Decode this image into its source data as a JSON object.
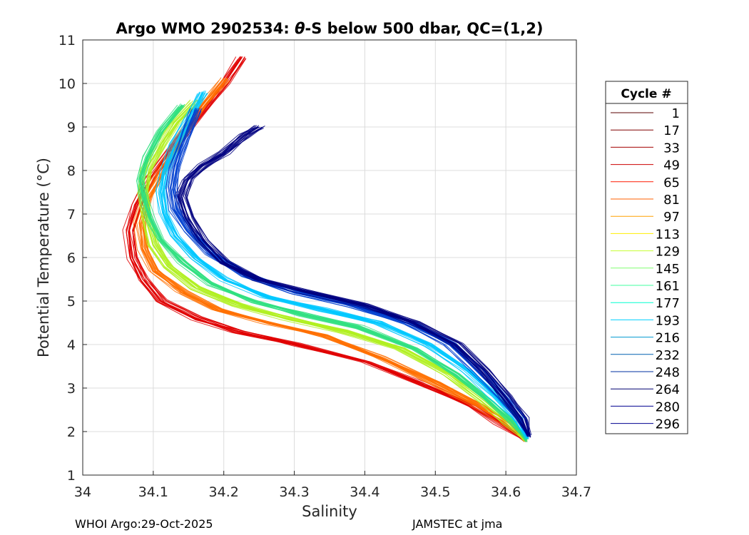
{
  "chart_data": {
    "type": "line",
    "title": "Argo WMO 2902534: θ-S below 500 dbar,  QC=(1,2)",
    "title_parts": {
      "prefix": "Argo WMO 2902534: ",
      "symbol": "θ",
      "suffix": "-S below 500 dbar,  QC=(1,2)"
    },
    "xlabel": "Salinity",
    "ylabel": "Potential Temperature (°C)",
    "xlim": [
      34,
      34.7
    ],
    "ylim": [
      1,
      11
    ],
    "xticks": [
      34,
      34.1,
      34.2,
      34.3,
      34.4,
      34.5,
      34.6,
      34.7
    ],
    "xtick_labels": [
      "34",
      "34.1",
      "34.2",
      "34.3",
      "34.4",
      "34.5",
      "34.6",
      "34.7"
    ],
    "yticks": [
      1,
      2,
      3,
      4,
      5,
      6,
      7,
      8,
      9,
      10,
      11
    ],
    "ytick_labels": [
      "1",
      "2",
      "3",
      "4",
      "5",
      "6",
      "7",
      "8",
      "9",
      "10",
      "11"
    ],
    "grid": true,
    "legend": {
      "title": "Cycle #",
      "placement": "right, outside",
      "entries": [
        {
          "label": "1",
          "color": "#5a0000"
        },
        {
          "label": "17",
          "color": "#800000"
        },
        {
          "label": "33",
          "color": "#a30000"
        },
        {
          "label": "49",
          "color": "#cc0000"
        },
        {
          "label": "65",
          "color": "#ff1a00"
        },
        {
          "label": "81",
          "color": "#ff6000"
        },
        {
          "label": "97",
          "color": "#ffa000"
        },
        {
          "label": "113",
          "color": "#ffee00"
        },
        {
          "label": "129",
          "color": "#c6ff30"
        },
        {
          "label": "145",
          "color": "#80ff70"
        },
        {
          "label": "161",
          "color": "#40ffa0"
        },
        {
          "label": "177",
          "color": "#00ffd0"
        },
        {
          "label": "193",
          "color": "#00d0ff"
        },
        {
          "label": "216",
          "color": "#009ad0"
        },
        {
          "label": "232",
          "color": "#0060b0"
        },
        {
          "label": "248",
          "color": "#0030a0"
        },
        {
          "label": "264",
          "color": "#000070"
        },
        {
          "label": "280",
          "color": "#000090"
        },
        {
          "label": "296",
          "color": "#00008f"
        }
      ]
    },
    "series_description": "Approximate envelope curves of theta-S profiles grouped by cycle color",
    "series": [
      {
        "name": "early cycles (red)",
        "color": "#e00000",
        "x": [
          34.627,
          34.59,
          34.55,
          34.48,
          34.4,
          34.3,
          34.22,
          34.16,
          34.11,
          34.085,
          34.07,
          34.065,
          34.075,
          34.095,
          34.13,
          34.17,
          34.2,
          34.225
        ],
        "y": [
          1.8,
          2.2,
          2.6,
          3.1,
          3.6,
          4.0,
          4.3,
          4.6,
          5.0,
          5.5,
          6.0,
          6.6,
          7.2,
          7.8,
          8.6,
          9.4,
          10.0,
          10.6
        ]
      },
      {
        "name": "early-mid cycles (orange)",
        "color": "#ff7000",
        "x": [
          34.627,
          34.6,
          34.56,
          34.5,
          34.42,
          34.34,
          34.26,
          34.19,
          34.14,
          34.1,
          34.085,
          34.08,
          34.09,
          34.11,
          34.14,
          34.17,
          34.2
        ],
        "y": [
          1.8,
          2.2,
          2.6,
          3.1,
          3.7,
          4.2,
          4.5,
          4.8,
          5.2,
          5.7,
          6.2,
          6.8,
          7.4,
          8.0,
          8.8,
          9.5,
          10.1
        ]
      },
      {
        "name": "middle cycles (yellow-green)",
        "color": "#b0f020",
        "x": [
          34.628,
          34.605,
          34.57,
          34.52,
          34.45,
          34.37,
          34.29,
          34.22,
          34.16,
          34.12,
          34.1,
          34.09,
          34.085,
          34.09,
          34.11,
          34.13,
          34.16
        ],
        "y": [
          1.8,
          2.2,
          2.7,
          3.3,
          3.9,
          4.3,
          4.6,
          4.9,
          5.3,
          5.8,
          6.3,
          6.9,
          7.5,
          8.0,
          8.6,
          9.1,
          9.6
        ]
      },
      {
        "name": "middle cycles (green)",
        "color": "#30e080",
        "x": [
          34.629,
          34.61,
          34.575,
          34.53,
          34.47,
          34.39,
          34.31,
          34.24,
          34.18,
          34.14,
          34.11,
          34.095,
          34.085,
          34.08,
          34.09,
          34.11,
          34.14
        ],
        "y": [
          1.8,
          2.2,
          2.7,
          3.3,
          3.9,
          4.4,
          4.7,
          5.0,
          5.4,
          5.9,
          6.4,
          6.9,
          7.4,
          7.8,
          8.3,
          8.9,
          9.5
        ]
      },
      {
        "name": "later cycles (cyan)",
        "color": "#00c8ff",
        "x": [
          34.63,
          34.615,
          34.585,
          34.545,
          34.49,
          34.42,
          34.34,
          34.26,
          34.2,
          34.16,
          34.13,
          34.115,
          34.11,
          34.115,
          34.13,
          34.15,
          34.17
        ],
        "y": [
          1.85,
          2.3,
          2.8,
          3.4,
          4.0,
          4.5,
          4.8,
          5.1,
          5.5,
          6.0,
          6.5,
          7.0,
          7.5,
          8.0,
          8.6,
          9.2,
          9.8
        ]
      },
      {
        "name": "later cycles (blue)",
        "color": "#0040d0",
        "x": [
          34.632,
          34.62,
          34.595,
          34.56,
          34.52,
          34.46,
          34.38,
          34.3,
          34.23,
          34.18,
          34.15,
          34.13,
          34.125,
          34.13,
          34.14,
          34.15,
          34.16
        ],
        "y": [
          1.9,
          2.3,
          2.8,
          3.4,
          4.0,
          4.5,
          4.9,
          5.2,
          5.6,
          6.1,
          6.6,
          7.1,
          7.6,
          8.1,
          8.6,
          9.0,
          9.4
        ]
      },
      {
        "name": "latest cycles (navy)",
        "color": "#000080",
        "x": [
          34.633,
          34.623,
          34.6,
          34.57,
          34.53,
          34.47,
          34.4,
          34.32,
          34.25,
          34.2,
          34.17,
          34.15,
          34.14,
          34.15,
          34.17,
          34.2,
          34.23,
          34.25
        ],
        "y": [
          1.9,
          2.3,
          2.8,
          3.4,
          4.0,
          4.5,
          4.9,
          5.2,
          5.5,
          5.9,
          6.4,
          6.9,
          7.4,
          7.8,
          8.1,
          8.4,
          8.8,
          9.0
        ]
      }
    ]
  },
  "footer": {
    "left": "WHOI Argo:29-Oct-2025",
    "right": "JAMSTEC at jma"
  }
}
